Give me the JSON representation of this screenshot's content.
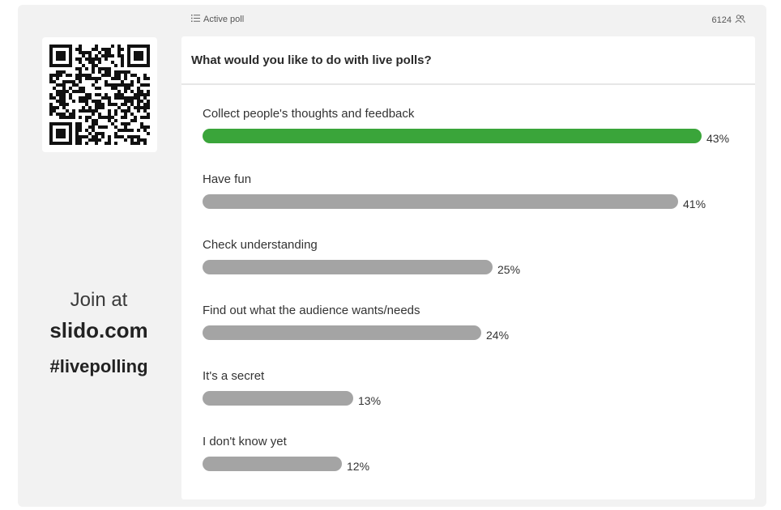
{
  "topbar": {
    "label": "Active poll",
    "participant_count": "6124"
  },
  "join": {
    "line1": "Join at",
    "line2": "slido.com",
    "line3": "#livepolling"
  },
  "poll": {
    "question": "What would you like to do with live polls?",
    "max_percent": 43,
    "options": [
      {
        "label": "Collect people's thoughts and feedback",
        "percent": 43,
        "percent_label": "43%",
        "leading": true
      },
      {
        "label": "Have fun",
        "percent": 41,
        "percent_label": "41%",
        "leading": false
      },
      {
        "label": "Check understanding",
        "percent": 25,
        "percent_label": "25%",
        "leading": false
      },
      {
        "label": "Find out what the audience wants/needs",
        "percent": 24,
        "percent_label": "24%",
        "leading": false
      },
      {
        "label": "It's a secret",
        "percent": 13,
        "percent_label": "13%",
        "leading": false
      },
      {
        "label": "I don't know yet",
        "percent": 12,
        "percent_label": "12%",
        "leading": false
      }
    ]
  },
  "colors": {
    "leading_bar": "#3aa53a",
    "bar": "#a4a4a4"
  }
}
